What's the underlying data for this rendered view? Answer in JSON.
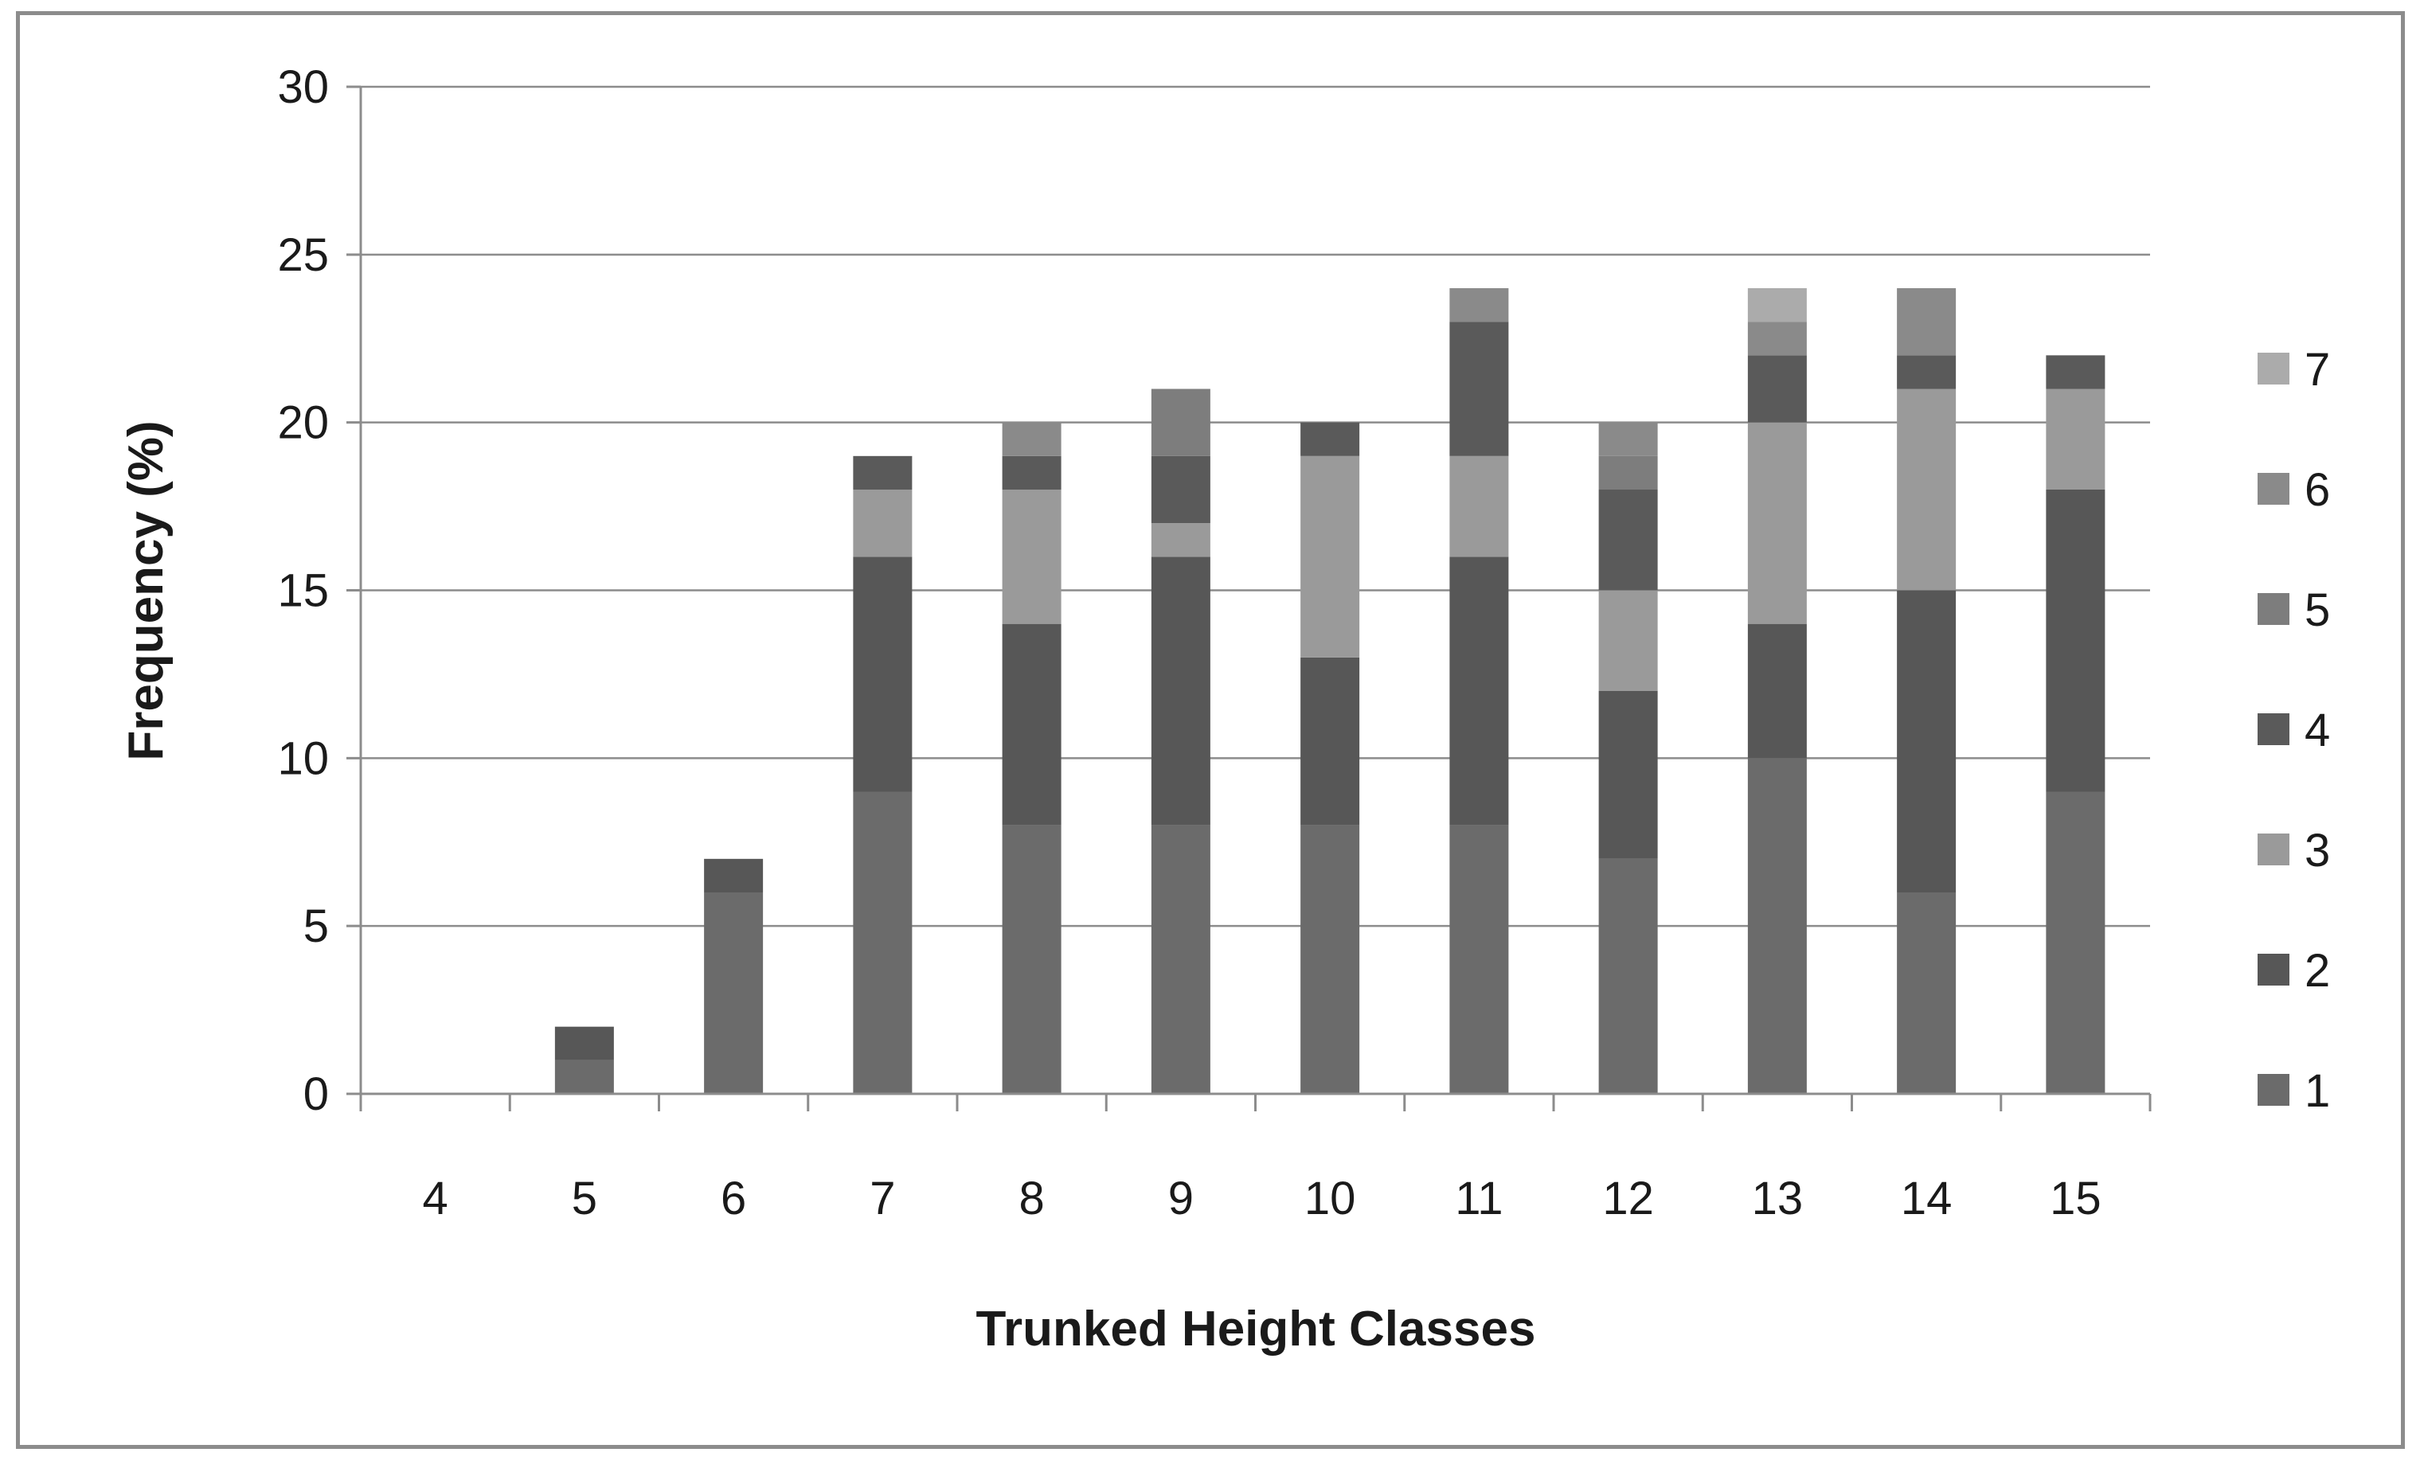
{
  "chart_data": {
    "type": "bar",
    "stacked": true,
    "xlabel": "Trunked Height Classes",
    "ylabel": "Frequency (%)",
    "ylim": [
      0,
      30
    ],
    "yticks": [
      0,
      5,
      10,
      15,
      20,
      25,
      30
    ],
    "grid": true,
    "legend_position": "right",
    "categories": [
      "4",
      "5",
      "6",
      "7",
      "8",
      "9",
      "10",
      "11",
      "12",
      "13",
      "14",
      "15"
    ],
    "series": [
      {
        "name": "1",
        "color": "#6b6b6b",
        "values": [
          0,
          1,
          6,
          9,
          8,
          8,
          8,
          8,
          7,
          10,
          6,
          9
        ]
      },
      {
        "name": "2",
        "color": "#575757",
        "values": [
          0,
          1,
          1,
          7,
          6,
          8,
          5,
          8,
          5,
          4,
          9,
          9
        ]
      },
      {
        "name": "3",
        "color": "#9a9a9a",
        "values": [
          0,
          0,
          0,
          2,
          4,
          1,
          6,
          3,
          3,
          6,
          6,
          3
        ]
      },
      {
        "name": "4",
        "color": "#5a5a5a",
        "values": [
          0,
          0,
          0,
          1,
          1,
          2,
          1,
          4,
          3,
          2,
          1,
          1
        ]
      },
      {
        "name": "5",
        "color": "#7d7d7d",
        "values": [
          0,
          0,
          0,
          0,
          0,
          2,
          0,
          0,
          1,
          0,
          0,
          0
        ]
      },
      {
        "name": "6",
        "color": "#8a8a8a",
        "values": [
          0,
          0,
          0,
          0,
          1,
          0,
          0,
          1,
          1,
          1,
          2,
          0
        ]
      },
      {
        "name": "7",
        "color": "#ababab",
        "values": [
          0,
          0,
          0,
          0,
          0,
          0,
          0,
          0,
          0,
          1,
          0,
          0
        ]
      }
    ]
  }
}
